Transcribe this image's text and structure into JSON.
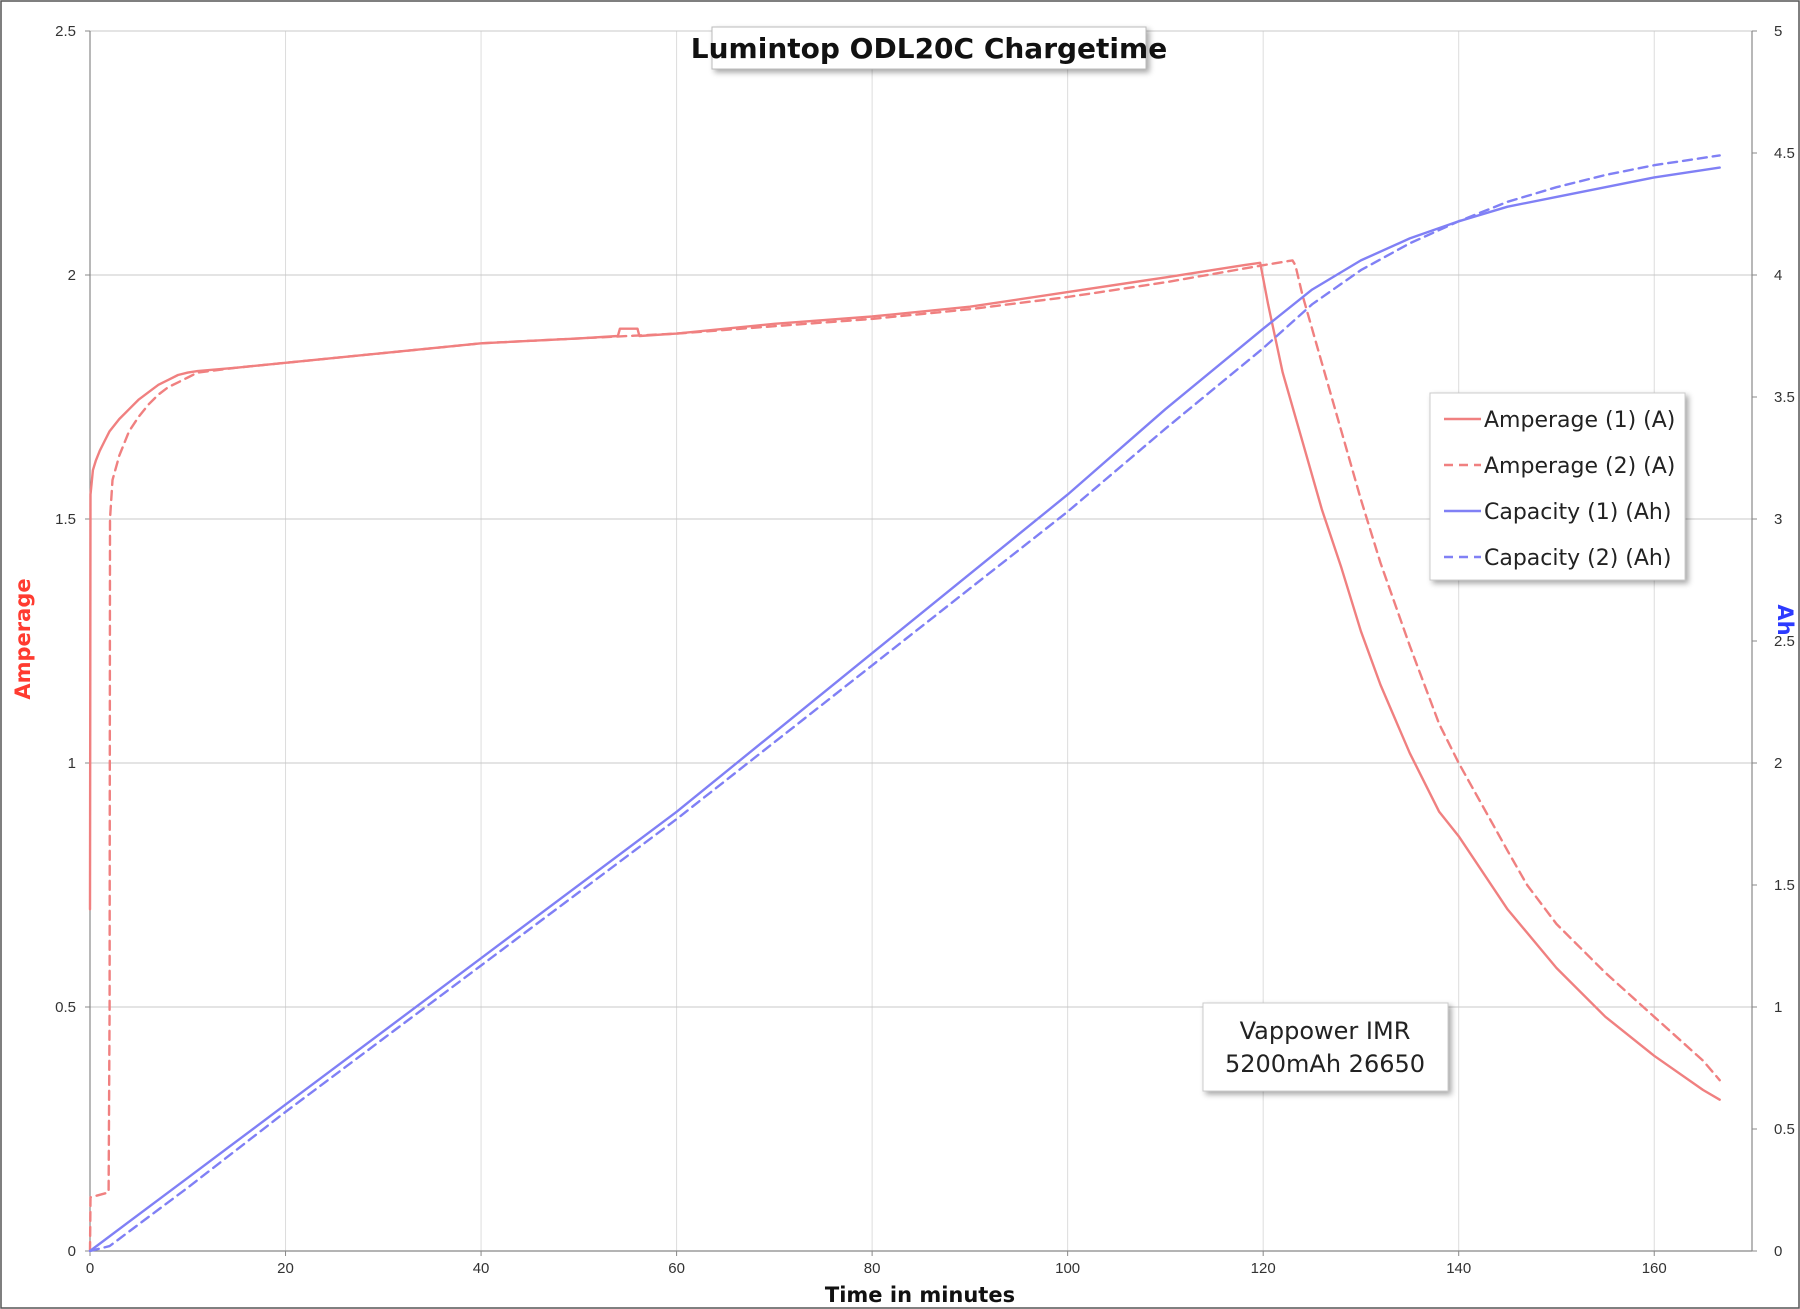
{
  "chart_data": {
    "type": "line",
    "title": "Lumintop ODL20C Chargetime",
    "xlabel": "Time in minutes",
    "ylabel_left": "Amperage",
    "ylabel_right": "Ah",
    "xlim": [
      0,
      170
    ],
    "ylim_left": [
      0,
      2.5
    ],
    "ylim_right": [
      0,
      5
    ],
    "x_ticks": [
      0,
      20,
      40,
      60,
      80,
      100,
      120,
      140,
      160
    ],
    "y_left_ticks": [
      "0",
      "0.5",
      "1",
      "1.5",
      "2",
      "2.5"
    ],
    "y_right_ticks": [
      "0",
      "0.5",
      "1",
      "1.5",
      "2",
      "2.5",
      "3",
      "3.5",
      "4",
      "4.5",
      "5"
    ],
    "grid": true,
    "legend_position": "right",
    "colors": {
      "amperage": "#f08080",
      "capacity": "#8080f5",
      "amperage_axis": "#ff3b30",
      "capacity_axis": "#2d3bff"
    },
    "annotation": [
      "Vappower IMR",
      "5200mAh 26650"
    ],
    "series": [
      {
        "name": "Amperage (1) (A)",
        "axis": "left",
        "style": "solid",
        "color": "#f08080",
        "x": [
          0,
          0.05,
          0.3,
          0.6,
          1,
          1.5,
          2,
          3,
          4,
          5,
          6,
          7,
          8,
          9,
          10,
          11,
          15,
          20,
          30,
          40,
          50,
          54,
          54.2,
          56,
          56.2,
          60,
          70,
          80,
          90,
          100,
          110,
          118,
          119.7,
          120.5,
          122,
          124,
          126,
          128,
          130,
          132,
          135,
          138,
          140,
          145,
          150,
          155,
          160,
          165,
          166.7
        ],
        "y": [
          0.7,
          1.55,
          1.6,
          1.62,
          1.64,
          1.66,
          1.68,
          1.705,
          1.725,
          1.745,
          1.76,
          1.775,
          1.785,
          1.795,
          1.8,
          1.803,
          1.81,
          1.82,
          1.84,
          1.86,
          1.87,
          1.875,
          1.89,
          1.89,
          1.875,
          1.88,
          1.9,
          1.915,
          1.935,
          1.965,
          1.995,
          2.02,
          2.025,
          1.94,
          1.8,
          1.66,
          1.52,
          1.4,
          1.27,
          1.16,
          1.02,
          0.9,
          0.85,
          0.7,
          0.58,
          0.48,
          0.4,
          0.33,
          0.31
        ]
      },
      {
        "name": "Amperage (2) (A)",
        "axis": "left",
        "style": "dashed",
        "color": "#f08080",
        "x": [
          0,
          0.05,
          1.9,
          2.0,
          2.05,
          2.3,
          3,
          4,
          5,
          6,
          7,
          8,
          9,
          10,
          11,
          15,
          20,
          30,
          40,
          50,
          60,
          70,
          80,
          90,
          100,
          110,
          120,
          123,
          123.3,
          124,
          126,
          128,
          130,
          132,
          135,
          138,
          140,
          145,
          147,
          150,
          155,
          160,
          165,
          166.7
        ],
        "y": [
          0,
          0.11,
          0.12,
          0.5,
          1.5,
          1.58,
          1.63,
          1.68,
          1.71,
          1.735,
          1.755,
          1.77,
          1.78,
          1.79,
          1.8,
          1.81,
          1.82,
          1.84,
          1.86,
          1.87,
          1.88,
          1.895,
          1.91,
          1.93,
          1.955,
          1.985,
          2.02,
          2.03,
          2.02,
          1.96,
          1.82,
          1.68,
          1.54,
          1.41,
          1.24,
          1.08,
          1.0,
          0.82,
          0.75,
          0.67,
          0.57,
          0.48,
          0.39,
          0.35
        ]
      },
      {
        "name": "Capacity (1) (Ah)",
        "axis": "right",
        "style": "solid",
        "color": "#8080f5",
        "x": [
          0,
          10,
          20,
          40,
          60,
          80,
          100,
          110,
          120,
          125,
          130,
          135,
          140,
          145,
          150,
          155,
          160,
          166.7
        ],
        "y": [
          0,
          0.3,
          0.6,
          1.2,
          1.8,
          2.45,
          3.1,
          3.45,
          3.78,
          3.94,
          4.06,
          4.15,
          4.22,
          4.28,
          4.32,
          4.36,
          4.4,
          4.44
        ]
      },
      {
        "name": "Capacity (2) (Ah)",
        "axis": "right",
        "style": "dashed",
        "color": "#8080f5",
        "x": [
          0,
          2,
          10,
          20,
          40,
          60,
          80,
          100,
          110,
          120,
          125,
          130,
          135,
          140,
          145,
          150,
          155,
          160,
          166.7
        ],
        "y": [
          0,
          0.02,
          0.26,
          0.57,
          1.17,
          1.77,
          2.4,
          3.03,
          3.37,
          3.7,
          3.88,
          4.02,
          4.13,
          4.22,
          4.3,
          4.36,
          4.41,
          4.45,
          4.49
        ]
      }
    ]
  }
}
